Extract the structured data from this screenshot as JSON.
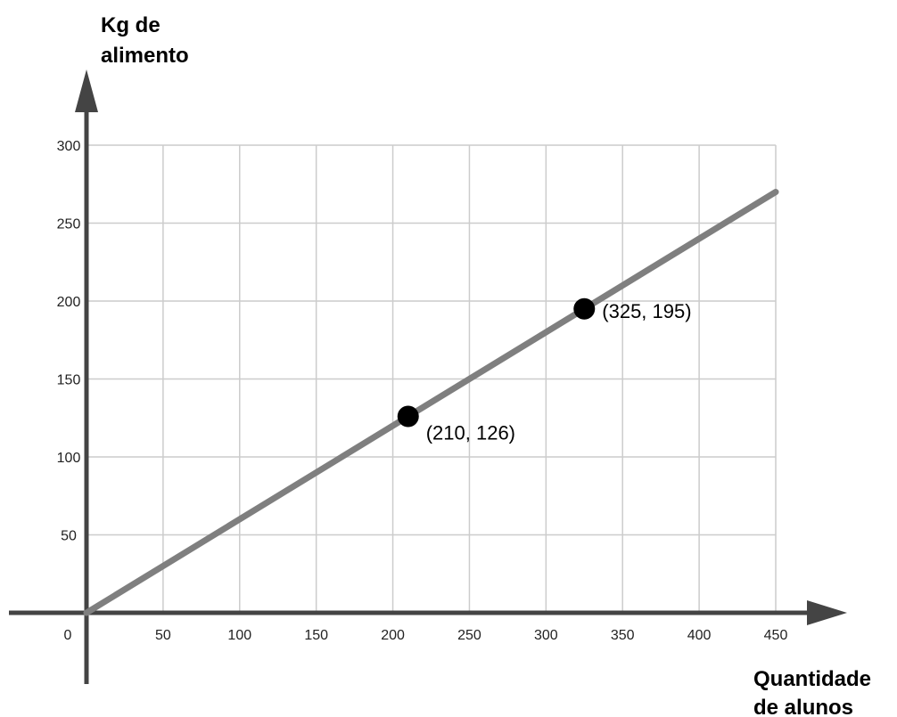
{
  "chart_data": {
    "type": "line",
    "title": "",
    "xlabel": [
      "Quantidade",
      "de alunos"
    ],
    "ylabel": [
      "Kg de",
      "alimento"
    ],
    "xlim": [
      0,
      450
    ],
    "ylim": [
      0,
      300
    ],
    "x_ticks": [
      50,
      100,
      150,
      200,
      250,
      300,
      350,
      400,
      450
    ],
    "y_ticks": [
      50,
      100,
      150,
      200,
      250,
      300
    ],
    "origin_label": "0",
    "grid": true,
    "series": [
      {
        "x": [
          0,
          450
        ],
        "y": [
          0,
          270
        ],
        "color": "#7f7f7f"
      }
    ],
    "points": [
      {
        "x": 210,
        "y": 126,
        "label": "(210, 126)"
      },
      {
        "x": 325,
        "y": 195,
        "label": "(325, 195)"
      }
    ],
    "colors": {
      "grid": "#cccccc",
      "axis": "#444444",
      "line": "#7f7f7f",
      "point": "#000000"
    }
  }
}
